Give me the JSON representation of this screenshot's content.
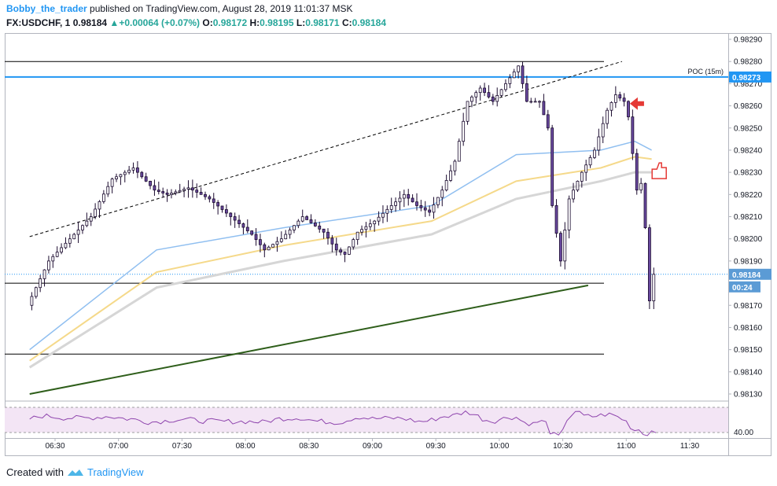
{
  "header": {
    "author": "Bobby_the_trader",
    "published_text": "published on TradingView.com, August 28, 2019 11:01:37 MSK",
    "symbol": "FX:USDCHF, 1",
    "last": "0.98184",
    "change": "+0.00064 (+0.07%)",
    "ohlc": {
      "o": "0.98172",
      "h": "0.98195",
      "l": "0.98171",
      "c": "0.98184"
    }
  },
  "footer": {
    "created_with": "Created with",
    "brand": "TradingView"
  },
  "colors": {
    "up": "#26a69a",
    "candle": "#1a0a2e",
    "candle_body": "#6a4aa0",
    "blue_ma": "#90bff0",
    "yellow_ma": "#f5d98a",
    "gray_ma": "#d6d6d6",
    "poc": "#2196f3",
    "trend_green": "#2e5e1a",
    "rsi": "#8e44ad",
    "rsi_fill": "#f3e5f5",
    "arrow_red": "#e53935"
  },
  "chart_data": {
    "type": "candlestick",
    "symbol": "FX:USDCHF",
    "timeframe": "1",
    "x_ticks": [
      "06:30",
      "07:00",
      "07:30",
      "08:00",
      "08:30",
      "09:00",
      "09:30",
      "10:00",
      "10:30",
      "11:00",
      "11:30"
    ],
    "y_ticks": [
      "0.98290",
      "0.98280",
      "0.98270",
      "0.98260",
      "0.98250",
      "0.98240",
      "0.98230",
      "0.98220",
      "0.98210",
      "0.98200",
      "0.98190",
      "0.98170",
      "0.98160",
      "0.98150",
      "0.98140",
      "0.98130"
    ],
    "ylim": [
      0.9813,
      0.9829
    ],
    "price_markers": {
      "poc_label": "POC (15m)",
      "poc_value": "0.98273",
      "last_value": "0.98184",
      "countdown": "00:24"
    },
    "horizontal_levels": [
      0.9828,
      0.9818,
      0.98148
    ],
    "rsi": {
      "level_label": "40.00"
    },
    "price_path": [
      [
        0,
        0.9817
      ],
      [
        5,
        0.9819
      ],
      [
        10,
        0.982
      ],
      [
        15,
        0.9821
      ],
      [
        20,
        0.98227
      ],
      [
        25,
        0.98232
      ],
      [
        30,
        0.98222
      ],
      [
        33,
        0.9822
      ],
      [
        38,
        0.98223
      ],
      [
        43,
        0.98218
      ],
      [
        48,
        0.9821
      ],
      [
        53,
        0.98202
      ],
      [
        56,
        0.98195
      ],
      [
        60,
        0.982
      ],
      [
        65,
        0.9821
      ],
      [
        70,
        0.98203
      ],
      [
        73,
        0.98195
      ],
      [
        75,
        0.98193
      ],
      [
        78,
        0.98203
      ],
      [
        82,
        0.98208
      ],
      [
        86,
        0.98215
      ],
      [
        89,
        0.9822
      ],
      [
        92,
        0.98215
      ],
      [
        95,
        0.98212
      ],
      [
        98,
        0.98222
      ],
      [
        101,
        0.98235
      ],
      [
        104,
        0.98262
      ],
      [
        107,
        0.98268
      ],
      [
        110,
        0.98262
      ],
      [
        113,
        0.9827
      ],
      [
        116,
        0.98278
      ],
      [
        118,
        0.98262
      ],
      [
        121,
        0.98262
      ],
      [
        123,
        0.9825
      ],
      [
        124,
        0.98215
      ],
      [
        126,
        0.9819
      ],
      [
        128,
        0.98218
      ],
      [
        131,
        0.9823
      ],
      [
        134,
        0.9824
      ],
      [
        137,
        0.98258
      ],
      [
        139,
        0.98265
      ],
      [
        141,
        0.98262
      ],
      [
        142,
        0.98255
      ],
      [
        144,
        0.98222
      ],
      [
        145,
        0.98225
      ],
      [
        146,
        0.98205
      ],
      [
        147,
        0.98172
      ],
      [
        148,
        0.98184
      ]
    ],
    "moving_averages": [
      {
        "color": "blue",
        "path": [
          [
            0,
            0.9815
          ],
          [
            30,
            0.98195
          ],
          [
            60,
            0.98205
          ],
          [
            95,
            0.98215
          ],
          [
            115,
            0.98238
          ],
          [
            135,
            0.9824
          ],
          [
            143,
            0.98244
          ],
          [
            147,
            0.9824
          ]
        ]
      },
      {
        "color": "yellow",
        "path": [
          [
            0,
            0.98145
          ],
          [
            30,
            0.98185
          ],
          [
            60,
            0.98197
          ],
          [
            95,
            0.98208
          ],
          [
            115,
            0.98226
          ],
          [
            135,
            0.98232
          ],
          [
            143,
            0.98237
          ],
          [
            147,
            0.98236
          ]
        ]
      },
      {
        "color": "gray",
        "path": [
          [
            0,
            0.98142
          ],
          [
            30,
            0.98178
          ],
          [
            60,
            0.9819
          ],
          [
            95,
            0.98202
          ],
          [
            115,
            0.98218
          ],
          [
            135,
            0.98226
          ],
          [
            143,
            0.9823
          ],
          [
            147,
            0.9823
          ]
        ]
      }
    ],
    "dashed_trendline": [
      [
        0,
        0.98201
      ],
      [
        140,
        0.9828
      ]
    ],
    "green_trendline": [
      [
        0,
        0.9813
      ],
      [
        132,
        0.98179
      ]
    ]
  }
}
